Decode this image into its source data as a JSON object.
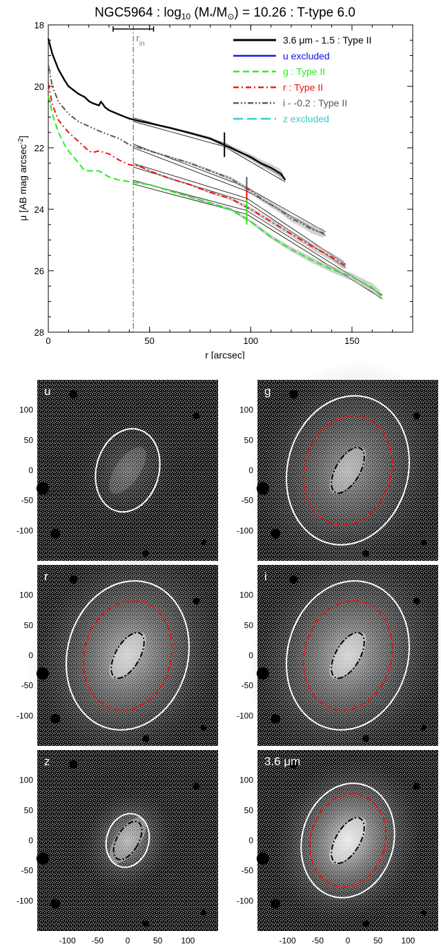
{
  "chart_data": [
    {
      "type": "line",
      "title": "NGC5964 : log10 (M*/M⊙) = 10.26 : T-type 6.0",
      "xlabel": "r [arcsec]",
      "ylabel": "μ [AB mag arcsec^-2]",
      "xlim": [
        0,
        180
      ],
      "ylim": [
        28,
        18
      ],
      "y_inverted": true,
      "x_ticks": [
        "0",
        "50",
        "100",
        "150"
      ],
      "y_ticks": [
        "18",
        "20",
        "22",
        "24",
        "26",
        "28"
      ],
      "legend_position": "top-right",
      "rin_label": "r",
      "rin_sub": "in",
      "rin_value": 42,
      "rin_range": [
        32,
        52
      ],
      "colors": {
        "ir": "#000000",
        "u": "#1010dd",
        "g": "#22ee22",
        "r": "#ee1111",
        "i": "#555555",
        "z": "#33cccc",
        "fit": "#000000",
        "shade": "#aaaaaa"
      },
      "series": [
        {
          "key": "ir",
          "name": "3.6 μm - 1.5 : Type II",
          "style": "solid",
          "break_r": 87,
          "break_mu": 21.9,
          "x": [
            0,
            2,
            5,
            8,
            10,
            12,
            15,
            18,
            20,
            22,
            25,
            26,
            27,
            28,
            30,
            35,
            40,
            45,
            50,
            60,
            70,
            80,
            90,
            100,
            105,
            110,
            115,
            117
          ],
          "y": [
            18.45,
            18.95,
            19.45,
            19.8,
            20.0,
            20.1,
            20.25,
            20.35,
            20.48,
            20.55,
            20.62,
            20.5,
            20.58,
            20.68,
            20.78,
            20.92,
            21.05,
            21.13,
            21.2,
            21.35,
            21.52,
            21.7,
            22.0,
            22.3,
            22.5,
            22.65,
            22.85,
            23.05
          ]
        },
        {
          "key": "i",
          "name": "i - -0.2 : Type II",
          "style": "dashdotdot",
          "break_r": 98,
          "break_mu": 23.35,
          "x": [
            0,
            2,
            5,
            10,
            15,
            20,
            25,
            30,
            35,
            40,
            45,
            50,
            60,
            70,
            80,
            90,
            100,
            105,
            110,
            115,
            120,
            125,
            130,
            137
          ],
          "y": [
            19.3,
            20.0,
            20.5,
            20.9,
            21.15,
            21.3,
            21.45,
            21.58,
            21.7,
            21.9,
            22.0,
            22.1,
            22.3,
            22.5,
            22.75,
            23.0,
            23.4,
            23.65,
            23.85,
            24.05,
            24.3,
            24.45,
            24.65,
            24.8
          ]
        },
        {
          "key": "r",
          "name": "r : Type II",
          "style": "dashdot",
          "break_r": 98,
          "break_mu": 23.7,
          "x": [
            0,
            2,
            5,
            10,
            15,
            20,
            22,
            25,
            30,
            35,
            40,
            45,
            50,
            60,
            70,
            80,
            90,
            100,
            110,
            120,
            130,
            140,
            147
          ],
          "y": [
            19.9,
            20.6,
            21.1,
            21.5,
            21.8,
            22.1,
            22.15,
            22.1,
            22.2,
            22.4,
            22.55,
            22.6,
            22.75,
            23.0,
            23.2,
            23.45,
            23.65,
            24.0,
            24.4,
            24.8,
            25.2,
            25.55,
            25.85
          ]
        },
        {
          "key": "g",
          "name": "g : Type II",
          "style": "dashed",
          "break_r": 98,
          "break_mu": 24.1,
          "x": [
            0,
            2,
            5,
            8,
            10,
            15,
            18,
            20,
            25,
            30,
            35,
            40,
            45,
            50,
            60,
            70,
            80,
            90,
            100,
            110,
            120,
            130,
            140,
            150,
            160,
            165
          ],
          "y": [
            20.3,
            20.9,
            21.5,
            21.9,
            22.1,
            22.5,
            22.75,
            22.75,
            22.75,
            22.95,
            23.05,
            23.1,
            23.15,
            23.2,
            23.4,
            23.6,
            23.8,
            24.0,
            24.4,
            24.9,
            25.3,
            25.65,
            25.95,
            26.2,
            26.55,
            26.85
          ]
        }
      ],
      "legend_entries": [
        {
          "key": "ir",
          "label": "3.6 μm - 1.5 : Type II",
          "style": "solid"
        },
        {
          "key": "u",
          "label": "u excluded",
          "style": "solid"
        },
        {
          "key": "g",
          "label": "g : Type II",
          "style": "dashed"
        },
        {
          "key": "r",
          "label": "r : Type II",
          "style": "dashdot"
        },
        {
          "key": "i",
          "label": "i - -0.2 : Type II",
          "style": "dashdotdot"
        },
        {
          "key": "z",
          "label": "z excluded",
          "style": "longdash"
        }
      ]
    },
    {
      "type": "image_grid",
      "axis_ticks_x": [
        "-100",
        "-50",
        "0",
        "50",
        "100"
      ],
      "axis_ticks_y": [
        "100",
        "50",
        "0",
        "-50",
        "-100"
      ],
      "extent": [
        -150,
        150
      ],
      "ellipse_colors": {
        "outer": "#ffffff",
        "break": "#ee1111",
        "inner": "#000000"
      },
      "panels": [
        {
          "label": "u",
          "outer_a": 70,
          "outer_b": 52,
          "break_a": 0,
          "break_b": 0,
          "inner_a": 0,
          "inner_b": 0,
          "brightness": 0.25
        },
        {
          "label": "g",
          "outer_a": 125,
          "outer_b": 100,
          "break_a": 92,
          "break_b": 72,
          "inner_a": 42,
          "inner_b": 20,
          "brightness": 0.55
        },
        {
          "label": "r",
          "outer_a": 125,
          "outer_b": 100,
          "break_a": 92,
          "break_b": 72,
          "inner_a": 42,
          "inner_b": 20,
          "brightness": 0.7
        },
        {
          "label": "i",
          "outer_a": 125,
          "outer_b": 100,
          "break_a": 92,
          "break_b": 72,
          "inner_a": 42,
          "inner_b": 20,
          "brightness": 0.7
        },
        {
          "label": "z",
          "outer_a": 45,
          "outer_b": 35,
          "break_a": 0,
          "break_b": 0,
          "inner_a": 35,
          "inner_b": 18,
          "brightness": 0.55
        },
        {
          "label": "3.6 μm",
          "outer_a": 96,
          "outer_b": 76,
          "break_a": 78,
          "break_b": 62,
          "inner_a": 42,
          "inner_b": 20,
          "brightness": 0.85
        }
      ]
    }
  ]
}
